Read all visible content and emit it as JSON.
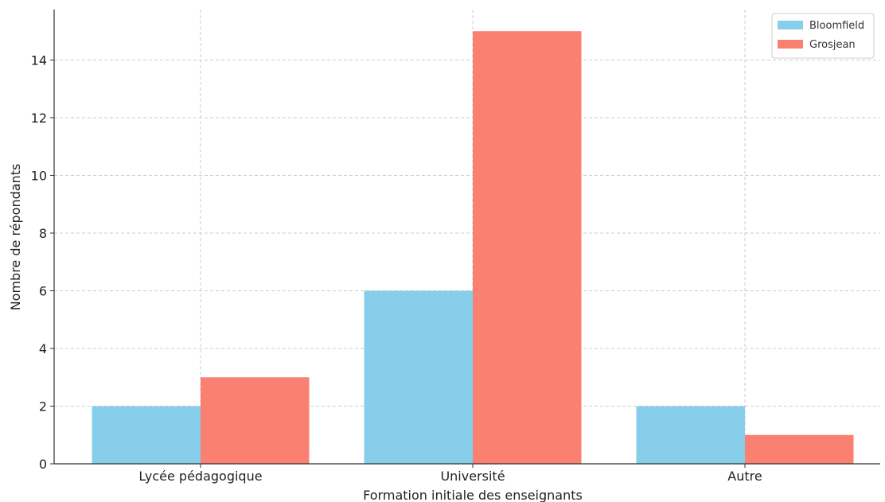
{
  "chart_data": {
    "type": "bar",
    "title": "",
    "xlabel": "Formation initiale des enseignants",
    "ylabel": "Nombre de répondants",
    "categories": [
      "Lycée pédagogique",
      "Université",
      "Autre"
    ],
    "series": [
      {
        "name": "Bloomfield",
        "values": [
          2,
          6,
          2
        ],
        "color": "#87CEEB"
      },
      {
        "name": "Grosjean",
        "values": [
          3,
          15,
          1
        ],
        "color": "#FA8072"
      }
    ],
    "ylim": [
      0,
      15.75
    ],
    "yticks": [
      "0",
      "2",
      "4",
      "6",
      "8",
      "10",
      "12",
      "14"
    ],
    "grid": true,
    "legend_position": "top-right"
  }
}
